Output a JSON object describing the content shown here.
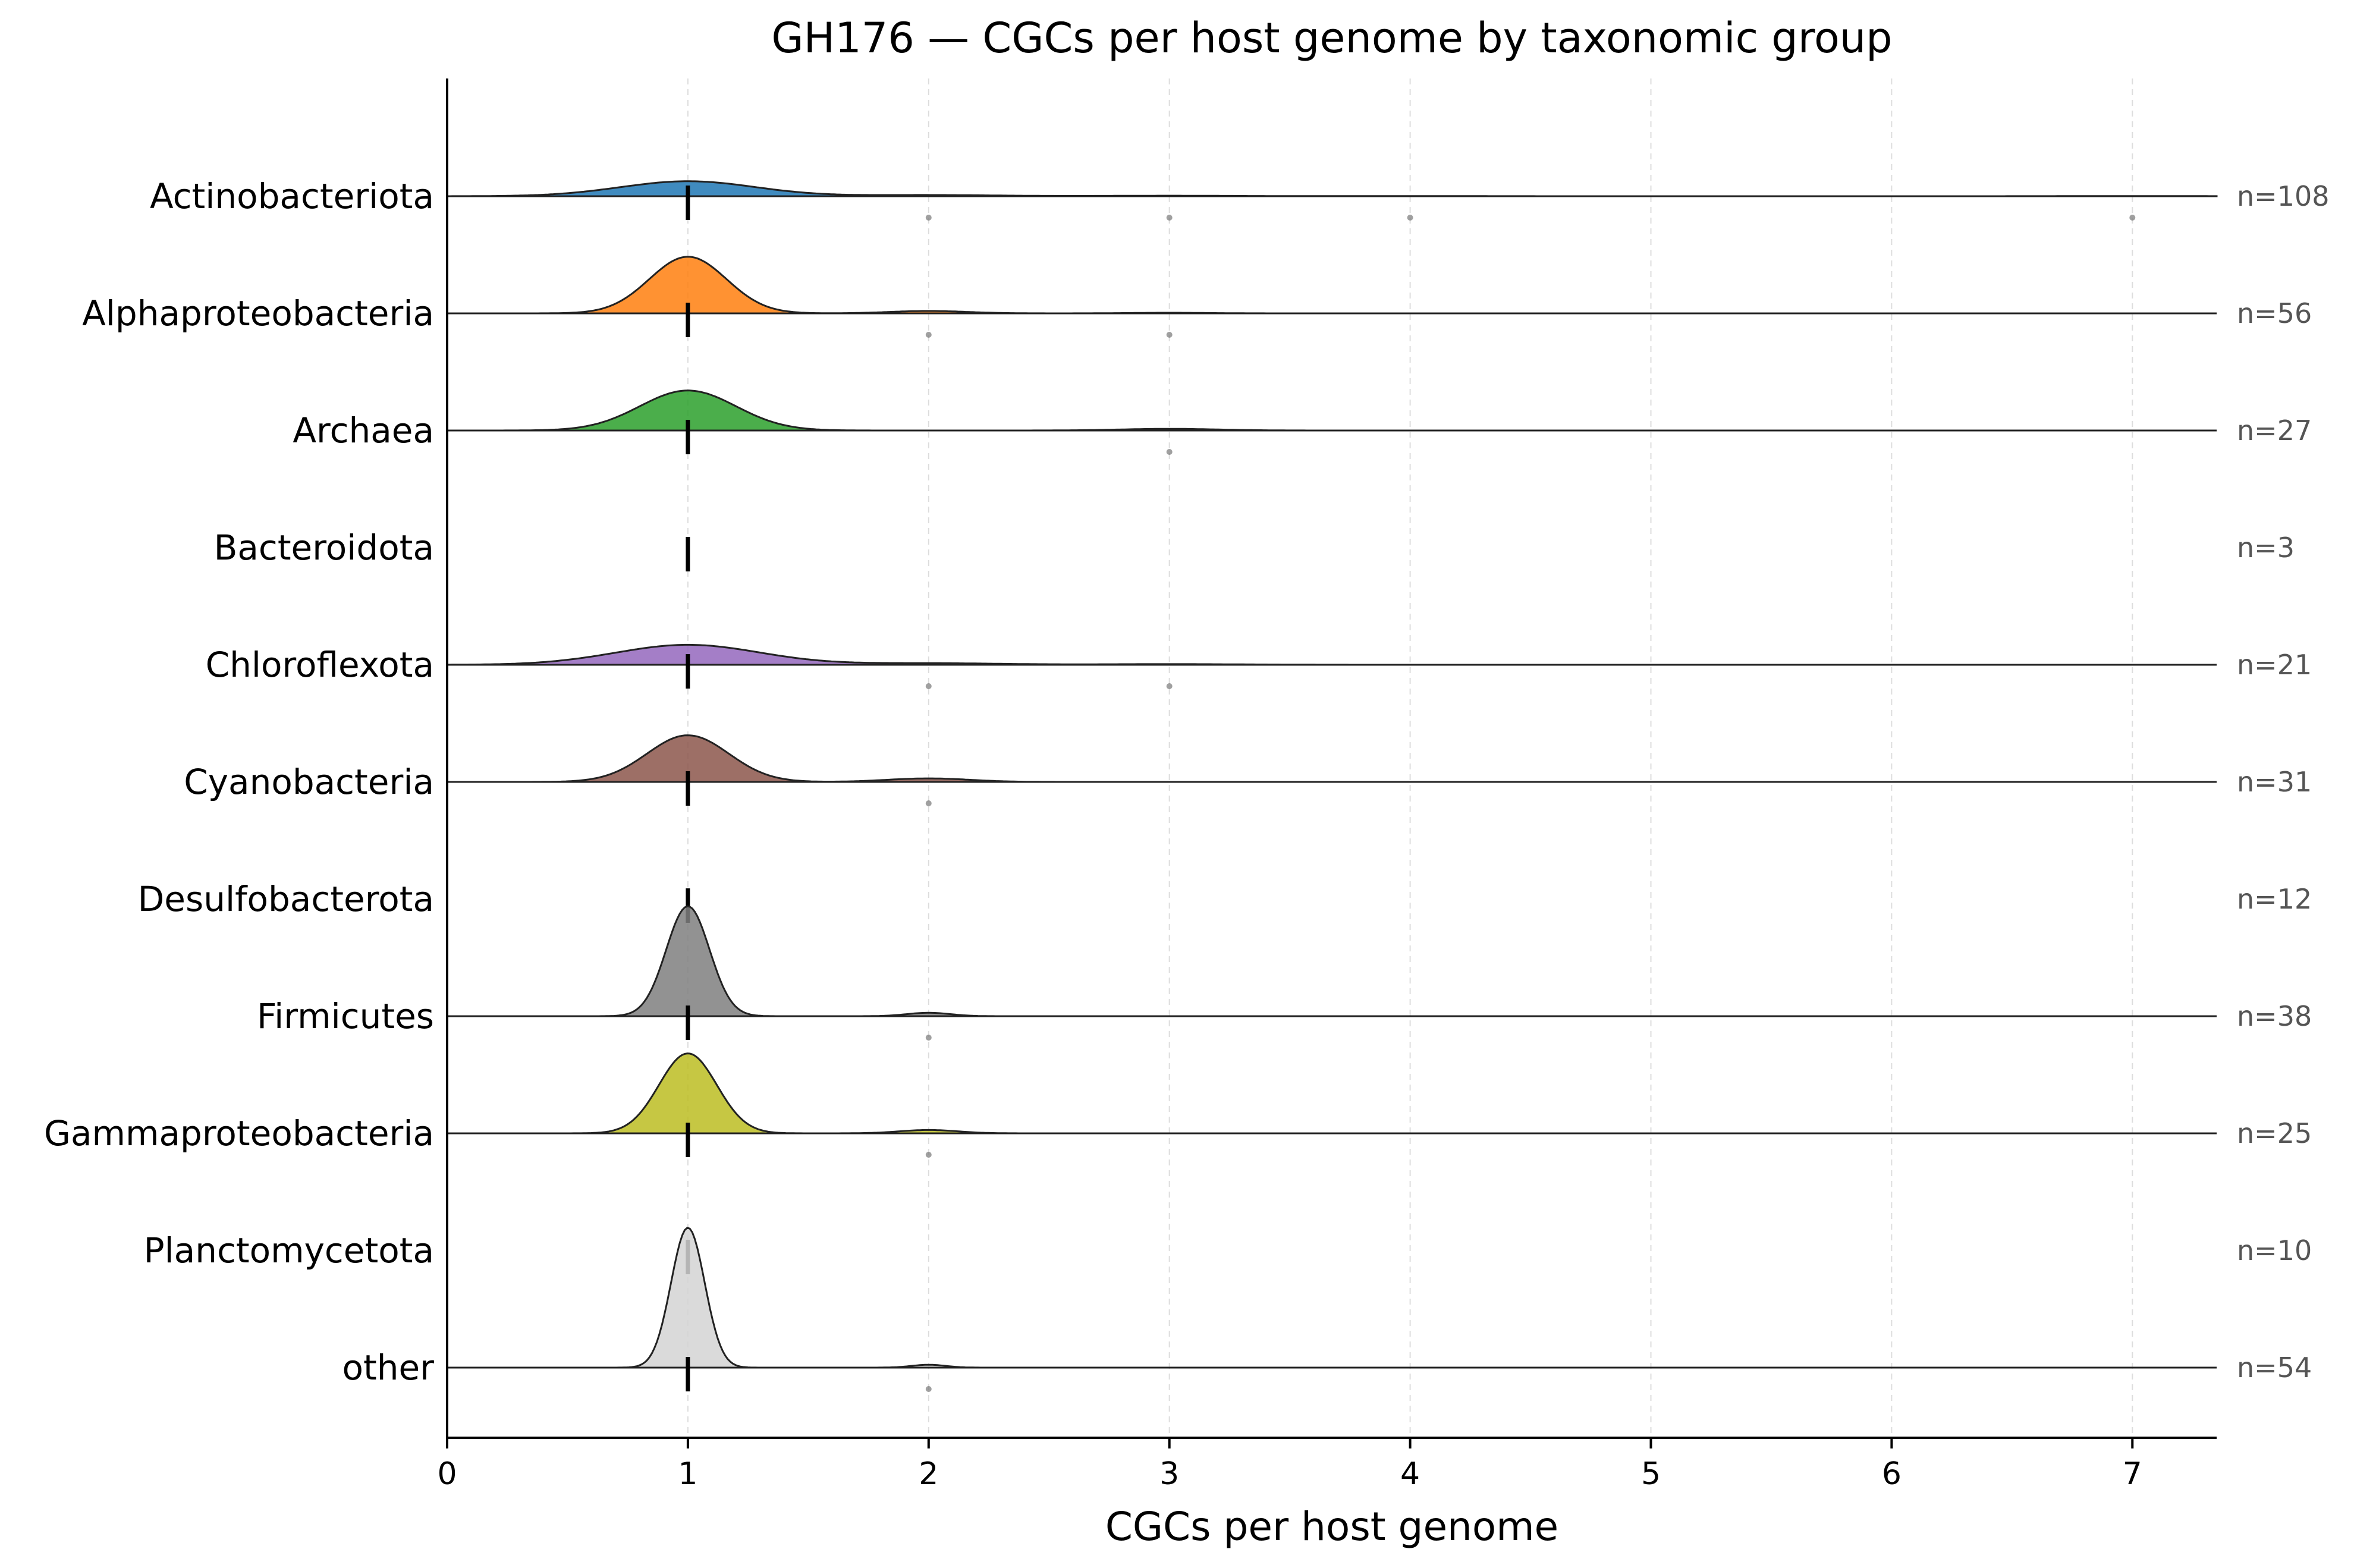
{
  "chart_data": {
    "type": "ridgeline",
    "title": "GH176 — CGCs per host genome by taxonomic group",
    "xlabel": "CGCs per host genome",
    "ylabel": "",
    "xlim": [
      0,
      7.35
    ],
    "xticks": [
      0,
      1,
      2,
      3,
      4,
      5,
      6,
      7
    ],
    "grid": "vertical dashed",
    "median_marker": "vertical dashed black bar",
    "groups": [
      {
        "name": "Actinobacteriota",
        "n_label": "n=108",
        "median": 1,
        "bandwidth": 0.28,
        "peak": 0.045,
        "color": "#1f77b4",
        "outliers": [
          2,
          3,
          4,
          7
        ],
        "components": [
          {
            "x": 1,
            "w": 0.88
          },
          {
            "x": 2,
            "w": 0.07
          },
          {
            "x": 3,
            "w": 0.03
          },
          {
            "x": 4,
            "w": 0.01
          },
          {
            "x": 7,
            "w": 0.01
          }
        ]
      },
      {
        "name": "Alphaproteobacteria",
        "n_label": "n=56",
        "median": 1,
        "bandwidth": 0.16,
        "peak": 0.17,
        "color": "#ff7f0e",
        "outliers": [
          2,
          3
        ],
        "components": [
          {
            "x": 1,
            "w": 0.95
          },
          {
            "x": 2,
            "w": 0.04
          },
          {
            "x": 3,
            "w": 0.01
          }
        ]
      },
      {
        "name": "Archaea",
        "n_label": "n=27",
        "median": 1,
        "bandwidth": 0.2,
        "peak": 0.12,
        "color": "#2ca02c",
        "outliers": [
          3
        ],
        "components": [
          {
            "x": 1,
            "w": 0.96
          },
          {
            "x": 3,
            "w": 0.04
          }
        ]
      },
      {
        "name": "Bacteroidota",
        "n_label": "n=3",
        "median": 1,
        "bandwidth": 0,
        "peak": 0,
        "color": "#d62728",
        "outliers": [],
        "components": []
      },
      {
        "name": "Chloroflexota",
        "n_label": "n=21",
        "median": 1,
        "bandwidth": 0.3,
        "peak": 0.06,
        "color": "#9467bd",
        "outliers": [
          2,
          3
        ],
        "components": [
          {
            "x": 1,
            "w": 0.9
          },
          {
            "x": 2,
            "w": 0.07
          },
          {
            "x": 3,
            "w": 0.03
          }
        ]
      },
      {
        "name": "Cyanobacteria",
        "n_label": "n=31",
        "median": 1,
        "bandwidth": 0.17,
        "peak": 0.14,
        "color": "#8c564b",
        "outliers": [
          2
        ],
        "components": [
          {
            "x": 1,
            "w": 0.93
          },
          {
            "x": 2,
            "w": 0.07
          }
        ]
      },
      {
        "name": "Desulfobacterota",
        "n_label": "n=12",
        "median": 1,
        "bandwidth": 0,
        "peak": 0,
        "color": "#e377c2",
        "outliers": [],
        "components": []
      },
      {
        "name": "Firmicutes",
        "n_label": "n=38",
        "median": 1,
        "bandwidth": 0.09,
        "peak": 0.33,
        "color": "#7f7f7f",
        "outliers": [
          2
        ],
        "components": [
          {
            "x": 1,
            "w": 0.97
          },
          {
            "x": 2,
            "w": 0.03
          }
        ]
      },
      {
        "name": "Gammaproteobacteria",
        "n_label": "n=25",
        "median": 1,
        "bandwidth": 0.12,
        "peak": 0.24,
        "color": "#bcbd22",
        "outliers": [
          2
        ],
        "components": [
          {
            "x": 1,
            "w": 0.96
          },
          {
            "x": 2,
            "w": 0.04
          }
        ]
      },
      {
        "name": "Planctomycetota",
        "n_label": "n=10",
        "median": 1,
        "bandwidth": 0,
        "peak": 0,
        "color": "#17becf",
        "outliers": [],
        "components": []
      },
      {
        "name": "other",
        "n_label": "n=54",
        "median": 1,
        "bandwidth": 0.07,
        "peak": 0.42,
        "color": "#d3d3d3",
        "outliers": [
          2
        ],
        "components": [
          {
            "x": 1,
            "w": 0.98
          },
          {
            "x": 2,
            "w": 0.02
          }
        ]
      }
    ]
  }
}
